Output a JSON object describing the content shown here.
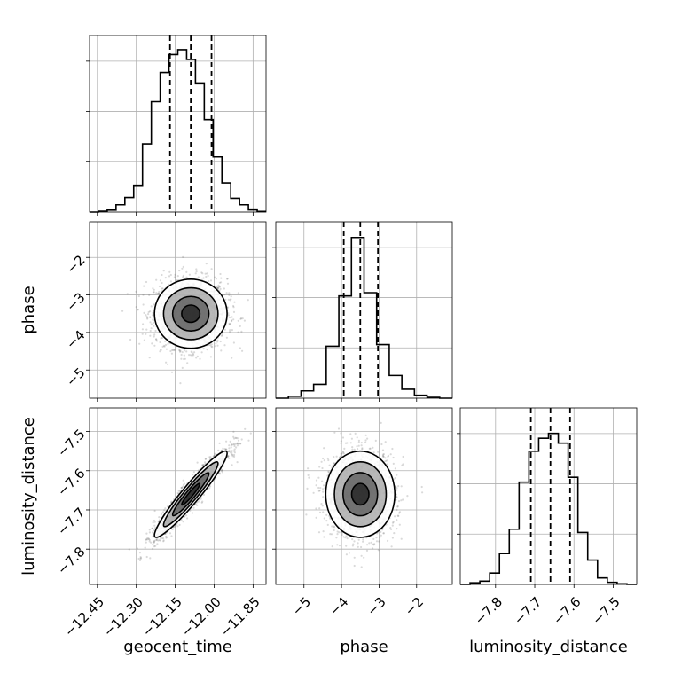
{
  "chart_data": {
    "type": "corner",
    "parameters": [
      "geocent_time",
      "phase",
      "luminosity_distance"
    ],
    "axis_labels": {
      "geocent_time": "geocent_time",
      "phase": "phase",
      "luminosity_distance": "luminosity_distance"
    },
    "ranges": {
      "geocent_time": [
        -12.48,
        -11.8
      ],
      "phase": [
        -5.75,
        -1.05
      ],
      "luminosity_distance": [
        -7.89,
        -7.44
      ]
    },
    "ticks": {
      "geocent_time": {
        "values": [
          -12.45,
          -12.3,
          -12.15,
          -12.0,
          -11.85
        ],
        "labels": [
          "−12.45",
          "−12.30",
          "−12.15",
          "−12.00",
          "−11.85"
        ]
      },
      "phase": {
        "values": [
          -5,
          -4,
          -3,
          -2
        ],
        "labels": [
          "−5",
          "−4",
          "−3",
          "−2"
        ]
      },
      "luminosity_distance": {
        "values": [
          -7.8,
          -7.7,
          -7.6,
          -7.5
        ],
        "labels": [
          "−7.8",
          "−7.7",
          "−7.6",
          "−7.5"
        ]
      }
    },
    "grid": true,
    "marginals": {
      "geocent_time": {
        "bin_edges_range": [
          -12.48,
          -11.8
        ],
        "counts": [
          0.0,
          0.005,
          0.012,
          0.045,
          0.09,
          0.16,
          0.42,
          0.68,
          0.86,
          0.97,
          1.0,
          0.94,
          0.79,
          0.57,
          0.34,
          0.18,
          0.085,
          0.045,
          0.013,
          0.004
        ],
        "quantiles": [
          -12.17,
          -12.09,
          -12.01
        ]
      },
      "phase": {
        "bin_edges_range": [
          -5.75,
          -1.05
        ],
        "counts": [
          0.0,
          0.012,
          0.045,
          0.085,
          0.32,
          0.63,
          0.99,
          0.65,
          0.33,
          0.14,
          0.055,
          0.018,
          0.005,
          0.0
        ],
        "quantiles": [
          -3.94,
          -3.5,
          -3.03
        ]
      },
      "luminosity_distance": {
        "bin_edges_range": [
          -7.89,
          -7.44
        ],
        "counts": [
          0.0,
          0.01,
          0.02,
          0.07,
          0.19,
          0.34,
          0.63,
          0.82,
          0.9,
          0.93,
          0.87,
          0.66,
          0.32,
          0.15,
          0.04,
          0.013,
          0.004,
          0.0
        ],
        "quantiles": [
          -7.71,
          -7.66,
          -7.61
        ]
      }
    },
    "pairs": [
      {
        "x": "geocent_time",
        "y": "phase",
        "mean": [
          -12.09,
          -3.5
        ],
        "sd": [
          0.07,
          0.46
        ],
        "correlation": 0.0
      },
      {
        "x": "geocent_time",
        "y": "luminosity_distance",
        "mean": [
          -12.09,
          -7.66
        ],
        "sd": [
          0.07,
          0.055
        ],
        "correlation": 0.95
      },
      {
        "x": "phase",
        "y": "luminosity_distance",
        "mean": [
          -3.5,
          -7.66
        ],
        "sd": [
          0.46,
          0.055
        ],
        "correlation": 0.0
      }
    ],
    "contour_levels_sigma": [
      0.5,
      1.0,
      1.5,
      2.0
    ]
  }
}
